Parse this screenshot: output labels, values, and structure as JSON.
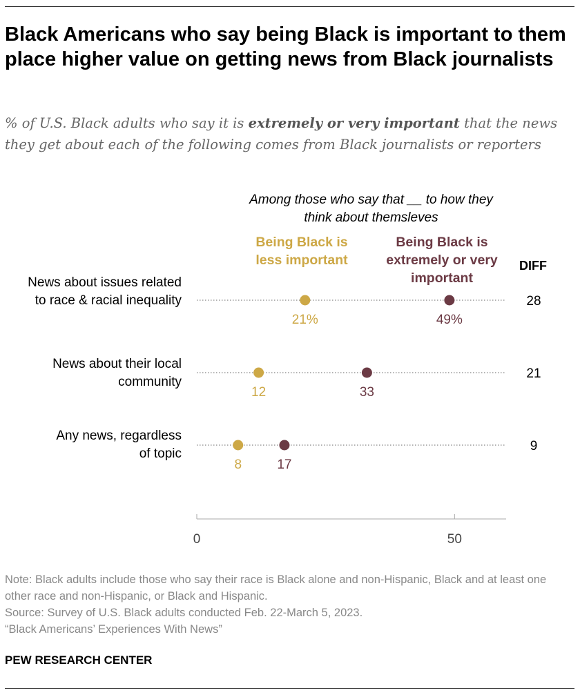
{
  "title": "Black Americans who say being Black is important to them place higher value on getting news from Black journalists",
  "subtitle": {
    "pre": "% of U.S. Black adults who say it is ",
    "bold": "extremely or very important",
    "post": " that the news they get about each of the following comes from Black journalists or reporters"
  },
  "among_label": "Among those who say that __ to how they think about themsleves",
  "diff_header": "DIFF",
  "colors": {
    "less": "#CDA846",
    "very": "#6B3A44"
  },
  "chart_data": {
    "type": "dot",
    "categories": [
      "News about issues related to race & racial inequality",
      "News about their local community",
      "Any news, regardless of topic"
    ],
    "series": [
      {
        "name": "Being Black is less important",
        "values": [
          21,
          12,
          8
        ],
        "labels": [
          "21%",
          "12",
          "8"
        ]
      },
      {
        "name": "Being Black is extremely or very important",
        "values": [
          49,
          33,
          17
        ],
        "labels": [
          "49%",
          "33",
          "17"
        ]
      }
    ],
    "diff": [
      "28",
      "21",
      "9"
    ],
    "xlim": [
      0,
      60
    ],
    "xticks": [
      {
        "value": 0,
        "label": "0"
      },
      {
        "value": 50,
        "label": "50"
      }
    ]
  },
  "footer": {
    "note": "Note: Black adults include those who say their race is Black alone and non-Hispanic, Black and at least one other race and non-Hispanic, or Black and Hispanic.",
    "source": "Source: Survey of U.S. Black adults conducted Feb. 22-March 5, 2023.",
    "report": "“Black Americans’ Experiences With News”",
    "brand": "PEW RESEARCH CENTER"
  }
}
